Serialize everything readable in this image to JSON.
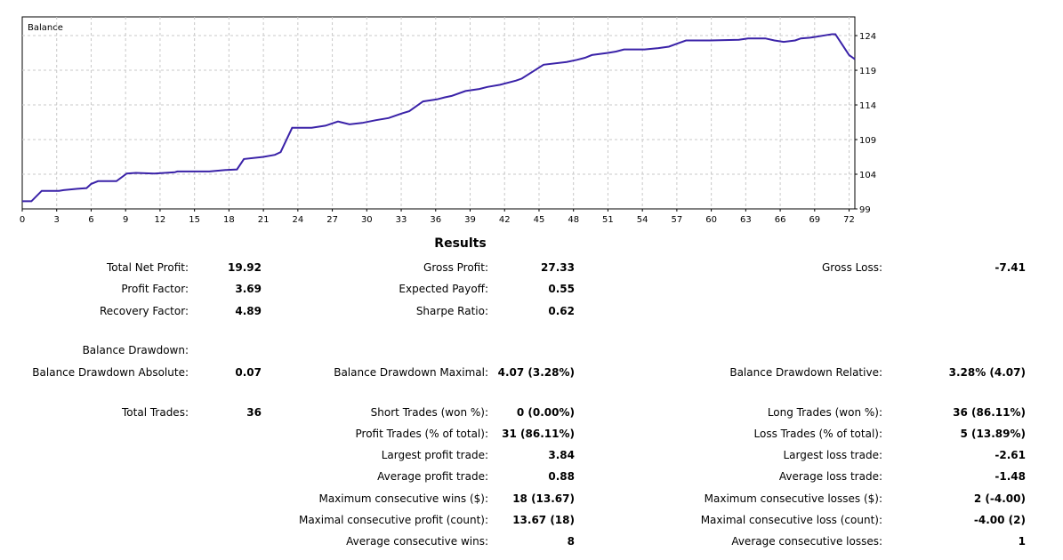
{
  "chart_data": {
    "type": "line",
    "title": "Balance",
    "x_ticks": [
      "0",
      "3",
      "6",
      "9",
      "12",
      "15",
      "18",
      "21",
      "24",
      "27",
      "30",
      "33",
      "36",
      "39",
      "42",
      "45",
      "48",
      "51",
      "54",
      "57",
      "60",
      "63",
      "66",
      "69",
      "72"
    ],
    "y_ticks": [
      "99",
      "104",
      "109",
      "114",
      "119",
      "124"
    ],
    "xlim": [
      0,
      72.5
    ],
    "ylim": [
      99,
      126.7
    ],
    "series": [
      {
        "name": "Balance",
        "color": "#3a22a8",
        "x": [
          0,
          0.8,
          1.7,
          3.2,
          3.6,
          4.8,
          5.6,
          6.0,
          6.6,
          8.2,
          9.1,
          9.9,
          11.5,
          13.3,
          13.5,
          15.5,
          16.3,
          17.7,
          18.7,
          19.3,
          21.0,
          22.0,
          22.5,
          23.5,
          25.2,
          26.4,
          27.5,
          28.5,
          29.6,
          30.8,
          31.9,
          33.1,
          33.7,
          34.9,
          36.1,
          36.8,
          37.4,
          38.6,
          39.8,
          40.5,
          41.6,
          43.0,
          43.5,
          45.4,
          47.4,
          48.3,
          49.0,
          49.6,
          51.0,
          51.7,
          52.4,
          54.2,
          55.4,
          56.3,
          57.8,
          59.9,
          62.4,
          63.2,
          64.7,
          65.5,
          66.3,
          67.3,
          67.8,
          68.6,
          69.0,
          70.1,
          70.5,
          70.8,
          71.4,
          72.0,
          72.5
        ],
        "y": [
          100.1,
          100.1,
          101.6,
          101.6,
          101.7,
          101.9,
          102.0,
          102.6,
          103.0,
          103.0,
          104.1,
          104.2,
          104.1,
          104.3,
          104.4,
          104.4,
          104.4,
          104.6,
          104.7,
          106.2,
          106.5,
          106.8,
          107.2,
          110.7,
          110.7,
          111.0,
          111.6,
          111.2,
          111.4,
          111.8,
          112.1,
          112.8,
          113.1,
          114.5,
          114.8,
          115.1,
          115.3,
          116.0,
          116.3,
          116.6,
          116.9,
          117.5,
          117.8,
          119.8,
          120.2,
          120.5,
          120.8,
          121.2,
          121.5,
          121.7,
          122.0,
          122.0,
          122.2,
          122.4,
          123.3,
          123.3,
          123.4,
          123.6,
          123.6,
          123.3,
          123.1,
          123.3,
          123.6,
          123.7,
          123.8,
          124.1,
          124.2,
          124.2,
          122.7,
          121.2,
          120.6
        ]
      }
    ]
  },
  "results": {
    "title": "Results",
    "col1": {
      "total_net_profit": {
        "label": "Total Net Profit:",
        "value": "19.92"
      },
      "profit_factor": {
        "label": "Profit Factor:",
        "value": "3.69"
      },
      "recovery_factor": {
        "label": "Recovery Factor:",
        "value": "4.89"
      },
      "balance_drawdown_header": "Balance Drawdown:",
      "bd_absolute": {
        "label": "Balance Drawdown Absolute:",
        "value": "0.07"
      },
      "total_trades": {
        "label": "Total Trades:",
        "value": "36"
      }
    },
    "col2": {
      "gross_profit": {
        "label": "Gross Profit:",
        "value": "27.33"
      },
      "expected_payoff": {
        "label": "Expected Payoff:",
        "value": "0.55"
      },
      "sharpe_ratio": {
        "label": "Sharpe Ratio:",
        "value": "0.62"
      },
      "bd_maximal": {
        "label": "Balance Drawdown Maximal:",
        "value": "4.07 (3.28%)"
      },
      "short_trades": {
        "label": "Short Trades (won %):",
        "value": "0 (0.00%)"
      },
      "profit_trades": {
        "label": "Profit Trades (% of total):",
        "value": "31 (86.11%)"
      },
      "largest_profit": {
        "label": "Largest profit trade:",
        "value": "3.84"
      },
      "average_profit": {
        "label": "Average profit trade:",
        "value": "0.88"
      },
      "max_consec_wins": {
        "label": "Maximum consecutive wins ($):",
        "value": "18 (13.67)"
      },
      "maximal_consec_profit": {
        "label": "Maximal consecutive profit (count):",
        "value": "13.67 (18)"
      },
      "avg_consec_wins": {
        "label": "Average consecutive wins:",
        "value": "8"
      }
    },
    "col3": {
      "gross_loss": {
        "label": "Gross Loss:",
        "value": "-7.41"
      },
      "bd_relative": {
        "label": "Balance Drawdown Relative:",
        "value": "3.28% (4.07)"
      },
      "long_trades": {
        "label": "Long Trades (won %):",
        "value": "36 (86.11%)"
      },
      "loss_trades": {
        "label": "Loss Trades (% of total):",
        "value": "5 (13.89%)"
      },
      "largest_loss": {
        "label": "Largest loss trade:",
        "value": "-2.61"
      },
      "average_loss": {
        "label": "Average loss trade:",
        "value": "-1.48"
      },
      "max_consec_losses": {
        "label": "Maximum consecutive losses ($):",
        "value": "2 (-4.00)"
      },
      "maximal_consec_loss": {
        "label": "Maximal consecutive loss (count):",
        "value": "-4.00 (2)"
      },
      "avg_consec_losses": {
        "label": "Average consecutive losses:",
        "value": "1"
      }
    }
  }
}
